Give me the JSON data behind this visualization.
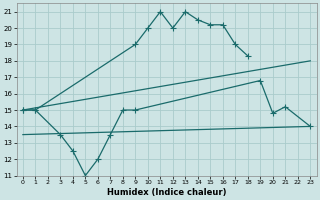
{
  "xlabel": "Humidex (Indice chaleur)",
  "xlim": [
    -0.5,
    23.5
  ],
  "ylim": [
    11,
    21.5
  ],
  "yticks": [
    11,
    12,
    13,
    14,
    15,
    16,
    17,
    18,
    19,
    20,
    21
  ],
  "xticks": [
    0,
    1,
    2,
    3,
    4,
    5,
    6,
    7,
    8,
    9,
    10,
    11,
    12,
    13,
    14,
    15,
    16,
    17,
    18,
    19,
    20,
    21,
    22,
    23
  ],
  "bg_color": "#cde4e4",
  "grid_color": "#aacccc",
  "line_color": "#1a6b6b",
  "line_width": 0.9,
  "marker": "+",
  "marker_size": 4,
  "line1_x": [
    0,
    1,
    9,
    10,
    11,
    12,
    13,
    14,
    15,
    16,
    17,
    18
  ],
  "line1_y": [
    15,
    15,
    19,
    20,
    21,
    20,
    21,
    20.5,
    20.2,
    20.2,
    19.0,
    18.3
  ],
  "line2_x": [
    0,
    23
  ],
  "line2_y": [
    15.0,
    18.0
  ],
  "line3_x": [
    0,
    23
  ],
  "line3_y": [
    13.5,
    14.0
  ],
  "line4_x": [
    0,
    1,
    3,
    4,
    5,
    6,
    7,
    8,
    9,
    19,
    20,
    21,
    23
  ],
  "line4_y": [
    15.0,
    15.0,
    13.5,
    12.5,
    11.0,
    12.0,
    13.5,
    15.0,
    15.0,
    16.8,
    14.8,
    15.2,
    14.0
  ]
}
